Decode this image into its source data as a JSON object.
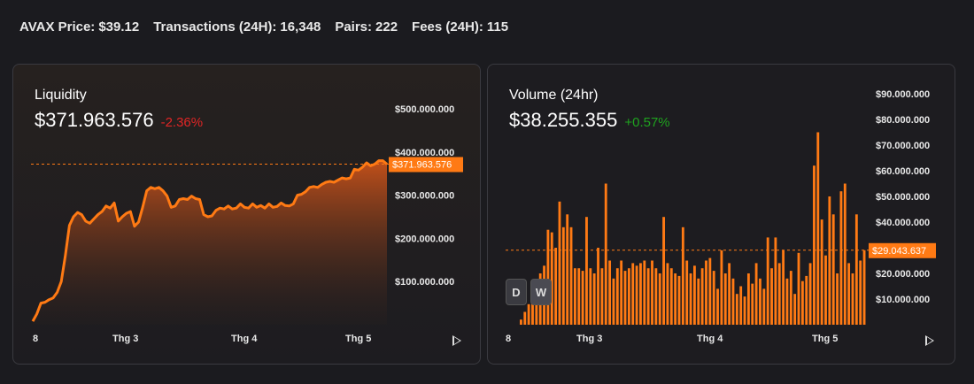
{
  "stats": {
    "avax_label": "AVAX Price:",
    "avax_value": "$39.12",
    "tx_label": "Transactions (24H):",
    "tx_value": "16,348",
    "pairs_label": "Pairs:",
    "pairs_value": "222",
    "fees_label": "Fees (24H):",
    "fees_value": "115"
  },
  "liquidity": {
    "title": "Liquidity",
    "value": "$371.963.576",
    "change": "-2.36%",
    "current_label": "$371.963.576"
  },
  "volume": {
    "title": "Volume (24hr)",
    "value": "$38.255.355",
    "change": "+0.57%",
    "current_label": "$29.043.637",
    "buttons": [
      "D",
      "W"
    ],
    "active_button": "W"
  },
  "colors": {
    "accent": "#ff7a14",
    "negative": "#e02525",
    "positive": "#1fa21f"
  },
  "icons": {
    "play": "play-icon"
  },
  "chart_data": [
    {
      "type": "area",
      "title": "Liquidity",
      "x_ticks": [
        "8",
        "Thg 3",
        "Thg 4",
        "Thg 5"
      ],
      "y_ticks": [
        "$100.000.000",
        "$200.000.000",
        "$300.000.000",
        "$400.000.000",
        "$500.000.000"
      ],
      "ylim": [
        0,
        500000000
      ],
      "grid": false,
      "current_value": 371963576,
      "values": [
        8000000,
        25000000,
        50000000,
        52000000,
        58000000,
        62000000,
        75000000,
        100000000,
        160000000,
        230000000,
        250000000,
        260000000,
        255000000,
        240000000,
        235000000,
        245000000,
        255000000,
        262000000,
        275000000,
        270000000,
        282000000,
        240000000,
        250000000,
        258000000,
        262000000,
        228000000,
        238000000,
        272000000,
        310000000,
        318000000,
        315000000,
        318000000,
        310000000,
        298000000,
        272000000,
        275000000,
        290000000,
        292000000,
        290000000,
        298000000,
        292000000,
        290000000,
        255000000,
        250000000,
        252000000,
        265000000,
        270000000,
        268000000,
        275000000,
        268000000,
        270000000,
        280000000,
        272000000,
        270000000,
        280000000,
        272000000,
        276000000,
        270000000,
        280000000,
        272000000,
        274000000,
        282000000,
        276000000,
        275000000,
        280000000,
        300000000,
        302000000,
        308000000,
        318000000,
        320000000,
        318000000,
        325000000,
        330000000,
        332000000,
        330000000,
        335000000,
        340000000,
        338000000,
        340000000,
        360000000,
        358000000,
        365000000,
        375000000,
        368000000,
        372000000,
        380000000,
        380000000,
        371963576
      ]
    },
    {
      "type": "bar",
      "title": "Volume (24hr)",
      "x_ticks": [
        "8",
        "Thg 3",
        "Thg 4",
        "Thg 5"
      ],
      "y_ticks": [
        "$10.000.000",
        "$20.000.000",
        "$30.000.000",
        "$40.000.000",
        "$50.000.000",
        "$60.000.000",
        "$70.000.000",
        "$80.000.000",
        "$90.000.000"
      ],
      "ylim": [
        0,
        90000000
      ],
      "grid": false,
      "current_value": 29043637,
      "values": [
        2000000,
        5000000,
        8000000,
        12000000,
        12000000,
        20000000,
        23000000,
        37000000,
        36000000,
        30000000,
        48000000,
        38000000,
        43000000,
        38000000,
        22000000,
        22000000,
        21000000,
        42000000,
        22000000,
        20000000,
        30000000,
        22000000,
        55000000,
        25000000,
        18000000,
        22000000,
        25000000,
        21000000,
        22000000,
        24000000,
        23000000,
        24000000,
        25000000,
        22000000,
        25000000,
        22000000,
        20000000,
        42000000,
        24000000,
        22000000,
        20000000,
        19000000,
        38000000,
        25000000,
        20000000,
        23000000,
        18000000,
        22000000,
        25000000,
        26000000,
        21000000,
        14000000,
        29000000,
        20000000,
        24000000,
        18000000,
        12000000,
        15000000,
        11000000,
        20000000,
        16000000,
        24000000,
        18000000,
        14000000,
        34000000,
        22000000,
        34000000,
        24000000,
        29000000,
        18000000,
        21000000,
        12000000,
        28000000,
        17000000,
        19000000,
        24000000,
        62000000,
        75000000,
        41000000,
        27000000,
        50000000,
        43000000,
        20000000,
        52000000,
        55000000,
        24000000,
        20000000,
        43000000,
        25000000,
        29043637
      ]
    }
  ]
}
